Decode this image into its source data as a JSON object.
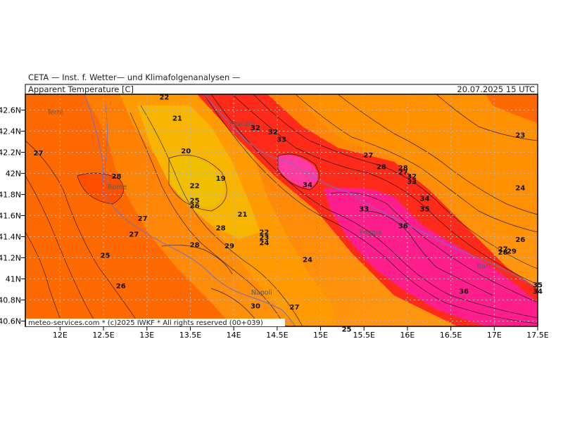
{
  "header": {
    "institute": "CETA — Inst. f. Wetter— und Klimafolgenanalysen —",
    "parameter": "Apparent Temperature [C]",
    "valid_time": "20.07.2025 15 UTC"
  },
  "footer": {
    "credit": "meteo-services.com * (c)2025 IWKF * All rights reserved (00+039)"
  },
  "axes": {
    "lat_labels": [
      "42.6N",
      "42.4N",
      "42.2N",
      "42N",
      "41.8N",
      "41.6N",
      "41.4N",
      "41.2N",
      "41N",
      "40.8N",
      "40.6N"
    ],
    "lon_labels": [
      "12E",
      "12.5E",
      "13E",
      "13.5E",
      "14E",
      "14.5E",
      "15E",
      "15.5E",
      "16E",
      "16.5E",
      "17E",
      "17.5E"
    ]
  },
  "cities": [
    {
      "name": "Terni",
      "lon": 11.85,
      "lat": 42.56
    },
    {
      "name": "Pescara",
      "lon": 13.95,
      "lat": 42.45
    },
    {
      "name": "Rome",
      "lon": 12.55,
      "lat": 41.85
    },
    {
      "name": "Napoli",
      "lon": 14.2,
      "lat": 40.85
    },
    {
      "name": "Foggia",
      "lon": 15.45,
      "lat": 41.42
    },
    {
      "name": "Bari",
      "lon": 16.8,
      "lat": 41.1
    }
  ],
  "contour_labels": [
    {
      "value": "22",
      "lon": 13.2,
      "lat": 42.7
    },
    {
      "value": "21",
      "lon": 13.35,
      "lat": 42.5
    },
    {
      "value": "27",
      "lon": 11.75,
      "lat": 42.17
    },
    {
      "value": "20",
      "lon": 13.45,
      "lat": 42.19
    },
    {
      "value": "28",
      "lon": 12.65,
      "lat": 41.95
    },
    {
      "value": "19",
      "lon": 13.85,
      "lat": 41.93
    },
    {
      "value": "22",
      "lon": 13.55,
      "lat": 41.86
    },
    {
      "value": "25",
      "lon": 13.55,
      "lat": 41.72
    },
    {
      "value": "26",
      "lon": 13.55,
      "lat": 41.67
    },
    {
      "value": "27",
      "lon": 12.95,
      "lat": 41.55
    },
    {
      "value": "21",
      "lon": 14.1,
      "lat": 41.59
    },
    {
      "value": "28",
      "lon": 13.85,
      "lat": 41.46
    },
    {
      "value": "27",
      "lon": 12.85,
      "lat": 41.4
    },
    {
      "value": "22",
      "lon": 14.35,
      "lat": 41.42
    },
    {
      "value": "23",
      "lon": 14.35,
      "lat": 41.37
    },
    {
      "value": "24",
      "lon": 14.35,
      "lat": 41.32
    },
    {
      "value": "28",
      "lon": 13.55,
      "lat": 41.3
    },
    {
      "value": "29",
      "lon": 13.95,
      "lat": 41.29
    },
    {
      "value": "25",
      "lon": 12.52,
      "lat": 41.2
    },
    {
      "value": "24",
      "lon": 14.85,
      "lat": 41.16
    },
    {
      "value": "26",
      "lon": 12.7,
      "lat": 40.91
    },
    {
      "value": "30",
      "lon": 14.25,
      "lat": 40.72
    },
    {
      "value": "27",
      "lon": 14.7,
      "lat": 40.71
    },
    {
      "value": "25",
      "lon": 15.3,
      "lat": 40.5
    },
    {
      "value": "32",
      "lon": 14.25,
      "lat": 42.41
    },
    {
      "value": "32",
      "lon": 14.45,
      "lat": 42.37
    },
    {
      "value": "33",
      "lon": 14.55,
      "lat": 42.3
    },
    {
      "value": "34",
      "lon": 14.85,
      "lat": 41.87
    },
    {
      "value": "27",
      "lon": 15.55,
      "lat": 42.15
    },
    {
      "value": "28",
      "lon": 15.7,
      "lat": 42.04
    },
    {
      "value": "28",
      "lon": 15.95,
      "lat": 42.03
    },
    {
      "value": "27",
      "lon": 15.95,
      "lat": 41.99
    },
    {
      "value": "32",
      "lon": 16.05,
      "lat": 41.95
    },
    {
      "value": "33",
      "lon": 16.05,
      "lat": 41.9
    },
    {
      "value": "33",
      "lon": 15.5,
      "lat": 41.64
    },
    {
      "value": "34",
      "lon": 16.2,
      "lat": 41.74
    },
    {
      "value": "35",
      "lon": 16.2,
      "lat": 41.64
    },
    {
      "value": "36",
      "lon": 15.95,
      "lat": 41.48
    },
    {
      "value": "23",
      "lon": 17.3,
      "lat": 42.34
    },
    {
      "value": "24",
      "lon": 17.3,
      "lat": 41.84
    },
    {
      "value": "26",
      "lon": 17.3,
      "lat": 41.35
    },
    {
      "value": "27",
      "lon": 17.1,
      "lat": 41.26
    },
    {
      "value": "28",
      "lon": 17.1,
      "lat": 41.23
    },
    {
      "value": "29",
      "lon": 17.2,
      "lat": 41.24
    },
    {
      "value": "36",
      "lon": 16.65,
      "lat": 40.86
    },
    {
      "value": "35",
      "lon": 17.5,
      "lat": 40.92
    },
    {
      "value": "34",
      "lon": 17.5,
      "lat": 40.86
    }
  ],
  "colors": {
    "cool": "#f5b400",
    "warm": "#ff8c00",
    "hot": "#ff5a00",
    "very_hot": "#ff1e1e",
    "extreme": "#ff1493",
    "grid": "#b8b8b8",
    "coast": "#7070c8"
  }
}
